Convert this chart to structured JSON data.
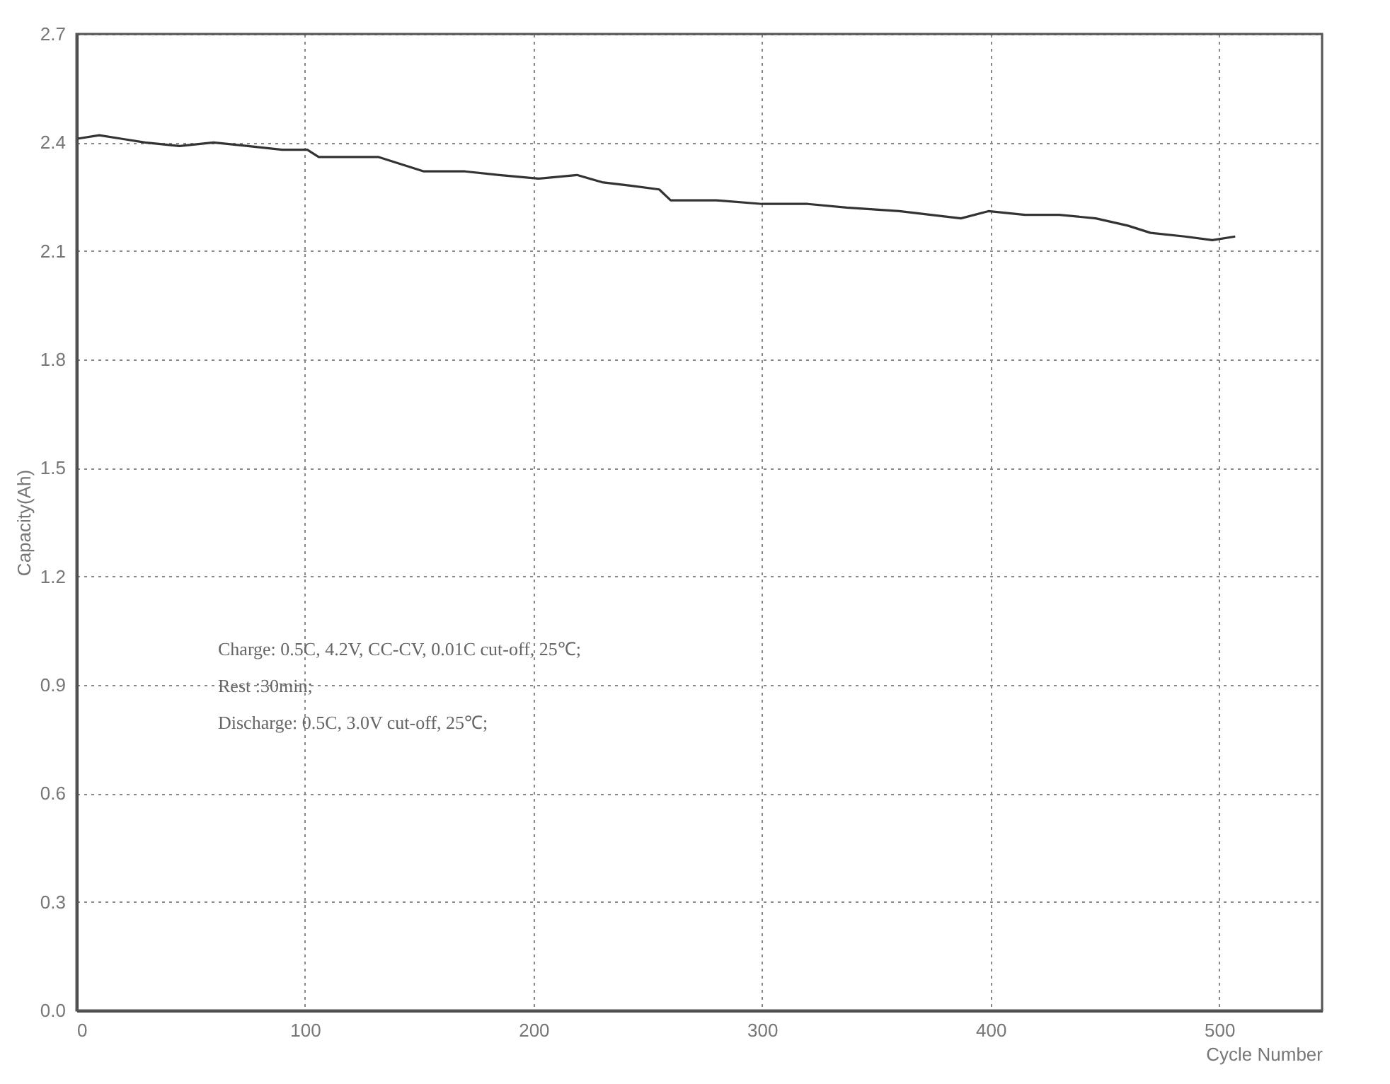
{
  "chart_data": {
    "type": "line",
    "xlabel": "Cycle Number",
    "ylabel": "Capacity(Ah)",
    "x": [
      0,
      10,
      20,
      30,
      45,
      60,
      75,
      90,
      101,
      106,
      120,
      132,
      142,
      152,
      170,
      185,
      202,
      219,
      230,
      243,
      255,
      260,
      280,
      300,
      320,
      337,
      360,
      387,
      399,
      415,
      430,
      446,
      460,
      470,
      485,
      497,
      507
    ],
    "series": [
      {
        "color": "#333333",
        "values": [
          2.41,
          2.42,
          2.41,
          2.4,
          2.39,
          2.4,
          2.39,
          2.38,
          2.38,
          2.36,
          2.36,
          2.36,
          2.34,
          2.32,
          2.32,
          2.31,
          2.3,
          2.31,
          2.29,
          2.28,
          2.27,
          2.24,
          2.24,
          2.23,
          2.23,
          2.22,
          2.21,
          2.19,
          2.21,
          2.2,
          2.2,
          2.19,
          2.17,
          2.15,
          2.14,
          2.13,
          2.14
        ]
      }
    ],
    "xlim": [
      0,
      545
    ],
    "xticks": [
      0,
      100,
      200,
      300,
      400,
      500
    ],
    "ylim": [
      0,
      2.7
    ],
    "yticks": [
      {
        "value": 0,
        "label": "0.0"
      },
      0.3,
      0.6,
      0.9,
      1.2,
      1.5,
      1.8,
      2.1,
      2.4,
      2.7
    ],
    "grid": true,
    "line_style": "solid",
    "marker": "none",
    "annotations": [
      "Charge: 0.5C, 4.2V, CC-CV, 0.01C cut-off, 25℃;",
      "Rest  :30min;",
      "Discharge: 0.5C, 3.0V cut-off, 25℃;"
    ]
  }
}
